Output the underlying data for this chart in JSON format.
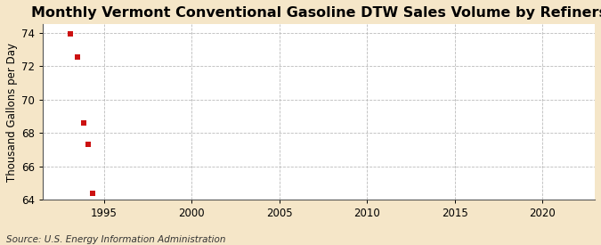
{
  "title": "Monthly Vermont Conventional Gasoline DTW Sales Volume by Refiners",
  "ylabel": "Thousand Gallons per Day",
  "source": "Source: U.S. Energy Information Administration",
  "background_color": "#f5e6c8",
  "plot_bg_color": "#ffffff",
  "data_x": [
    1993.08,
    1993.5,
    1993.83,
    1994.08,
    1994.33
  ],
  "data_y": [
    73.95,
    72.55,
    68.6,
    67.3,
    64.35
  ],
  "marker_color": "#cc1111",
  "marker_size": 4,
  "xlim": [
    1991.5,
    2023
  ],
  "ylim": [
    64,
    74.5
  ],
  "xticks": [
    1995,
    2000,
    2005,
    2010,
    2015,
    2020
  ],
  "yticks": [
    64,
    66,
    68,
    70,
    72,
    74
  ],
  "grid_color": "#bbbbbb",
  "title_fontsize": 11.5,
  "label_fontsize": 8.5,
  "tick_fontsize": 8.5,
  "source_fontsize": 7.5
}
